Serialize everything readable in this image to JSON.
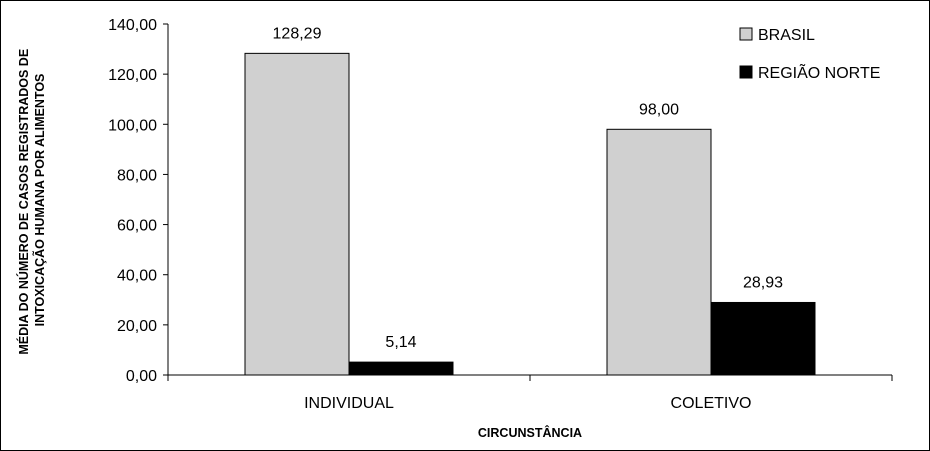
{
  "chart_data": {
    "type": "bar",
    "categories": [
      "INDIVIDUAL",
      "COLETIVO"
    ],
    "series": [
      {
        "name": "BRASIL",
        "values": [
          128.29,
          98.0
        ],
        "labels": [
          "128,29",
          "98,00"
        ],
        "color": "#d0d0d0"
      },
      {
        "name": "REGIÃO NORTE",
        "values": [
          5.14,
          28.93
        ],
        "labels": [
          "5,14",
          "28,93"
        ],
        "color": "#000000"
      }
    ],
    "xlabel": "CIRCUNSTÂNCIA",
    "ylabel_lines": [
      "MÉDIA DO NÚMERO DE CASOS REGISTRADOS DE",
      "INTOXICAÇÃO HUMANA POR ALIMENTOS"
    ],
    "ylim": [
      0,
      140
    ],
    "yticks": [
      0,
      20,
      40,
      60,
      80,
      100,
      120,
      140
    ],
    "ytick_labels": [
      "0,00",
      "20,00",
      "40,00",
      "60,00",
      "80,00",
      "100,00",
      "120,00",
      "140,00"
    ],
    "grid": false,
    "legend_position": "top-right"
  }
}
